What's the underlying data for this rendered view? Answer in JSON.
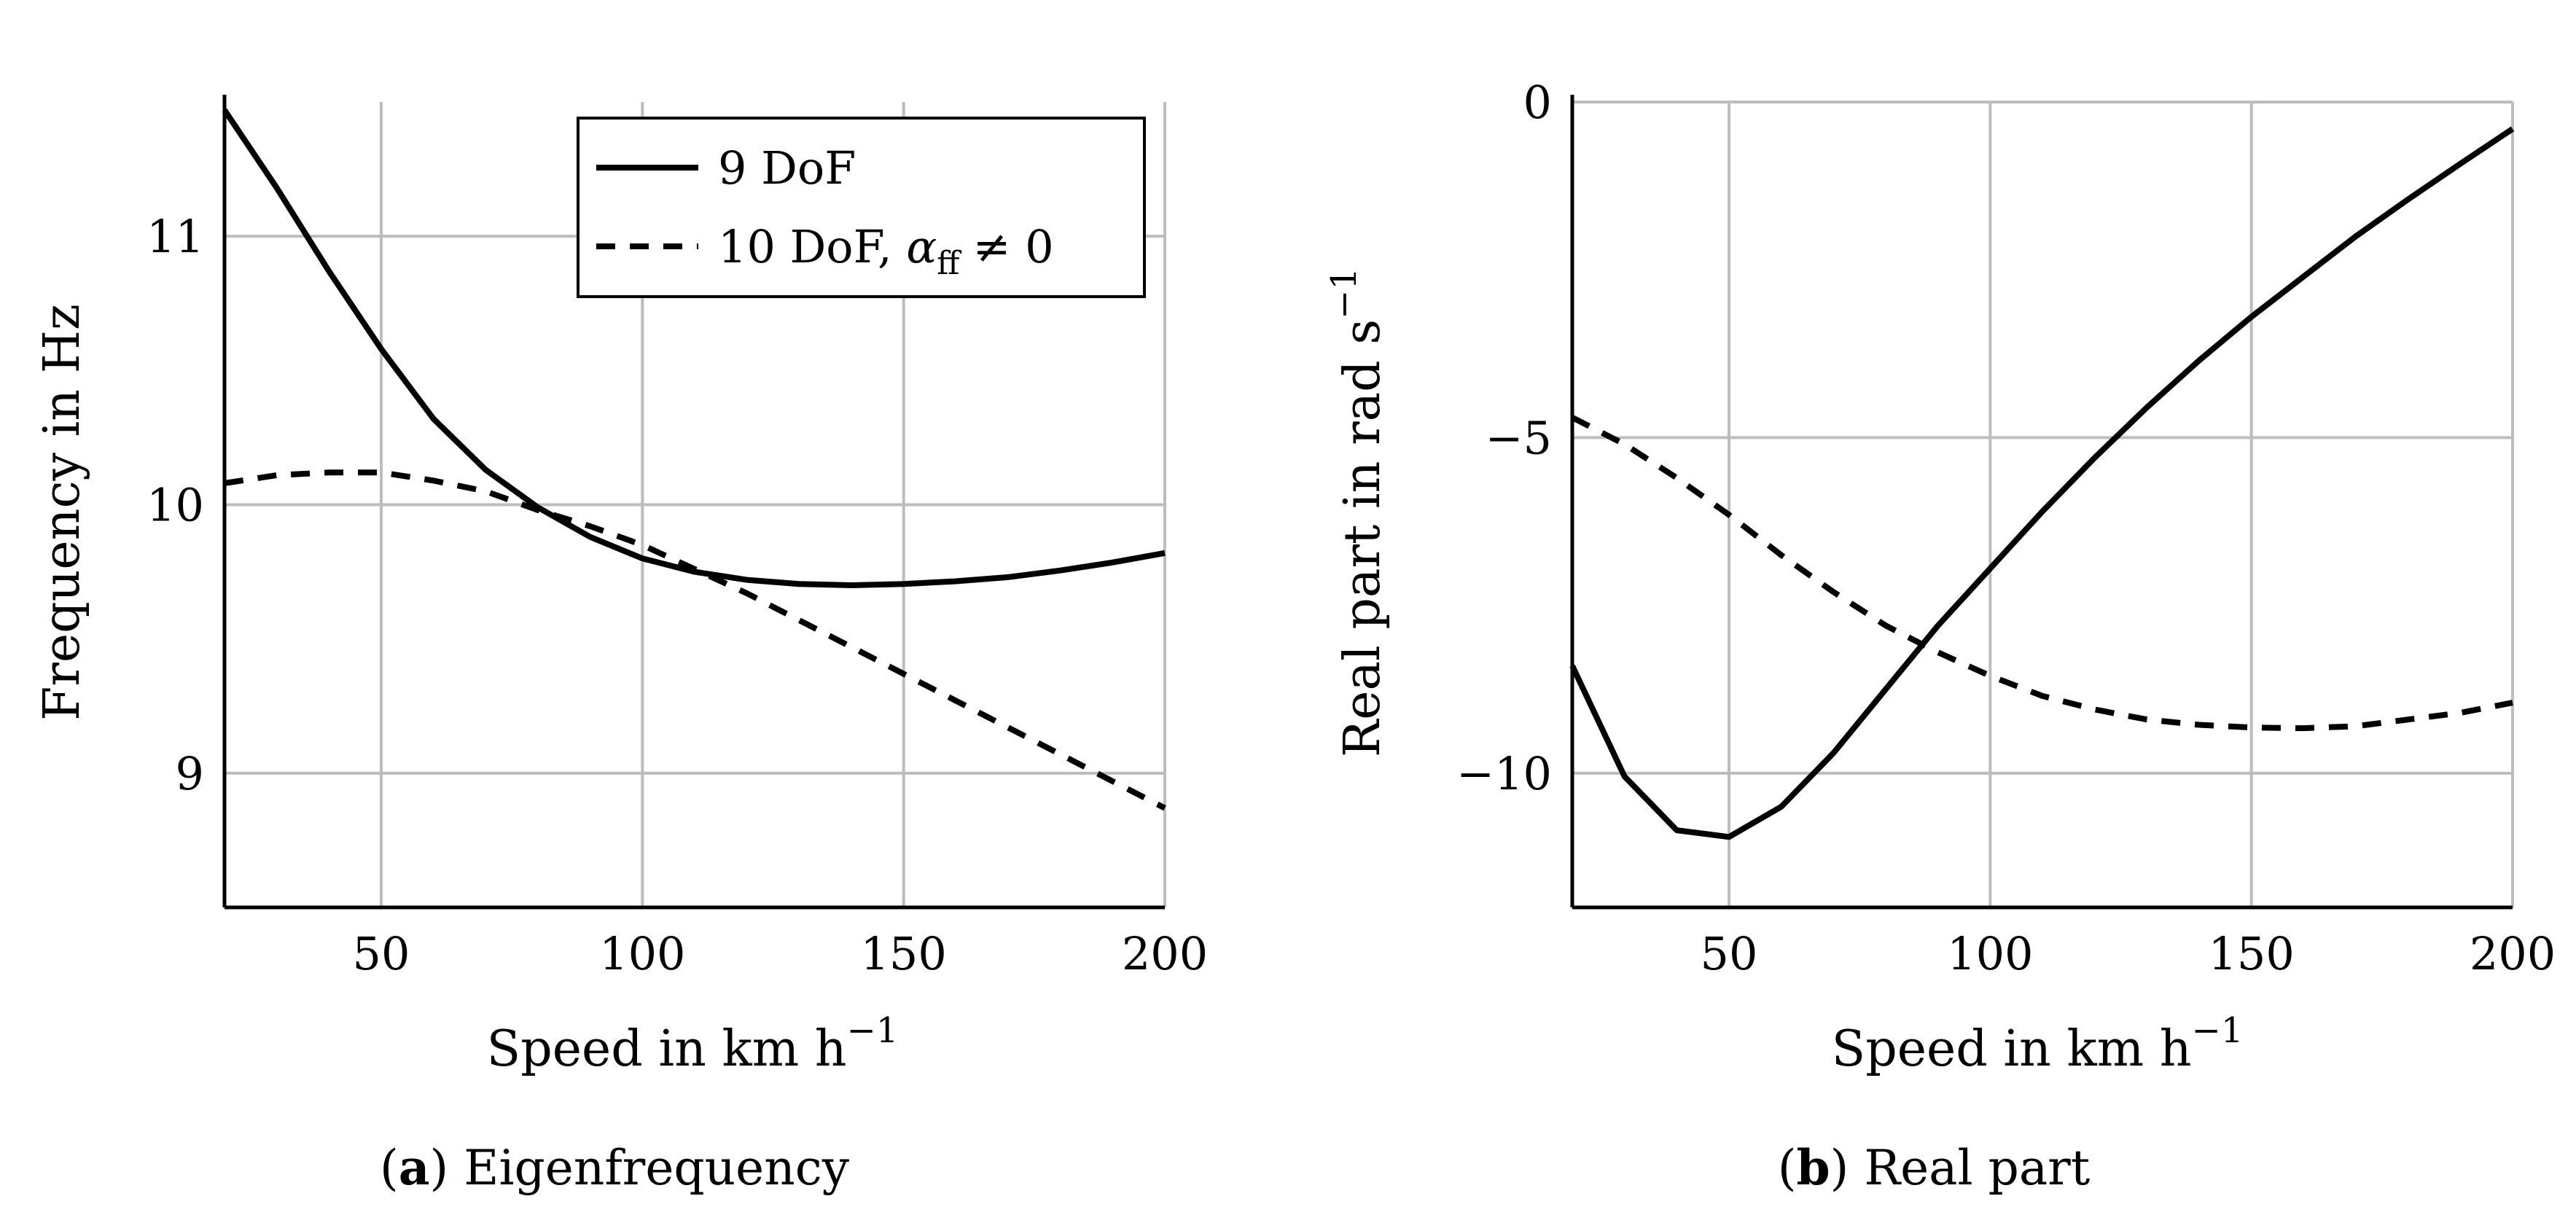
{
  "chart_data": [
    {
      "type": "line",
      "title": "",
      "caption": {
        "letter": "a",
        "text": "Eigenfrequency"
      },
      "xlabel": "Speed in km h",
      "xlabel_exponent": "−1",
      "ylabel": "Frequency in Hz",
      "xlim": [
        20,
        200
      ],
      "ylim": [
        8.5,
        11.5
      ],
      "xticks": [
        50,
        100,
        150,
        200
      ],
      "xtick_labels": [
        "50",
        "100",
        "150",
        "200"
      ],
      "yticks": [
        9,
        10,
        11
      ],
      "ytick_labels": [
        "9",
        "10",
        "11"
      ],
      "grid": true,
      "legend": {
        "placement": "top-right",
        "entries": [
          {
            "label": "9 DoF",
            "style": "solid"
          },
          {
            "label": "10 DoF, ",
            "math_symbol": "α",
            "math_subscript": "ff",
            "math_relation": "≠ 0",
            "style": "dashed"
          }
        ]
      },
      "series": [
        {
          "name": "9 DoF",
          "style": "solid",
          "x": [
            20,
            30,
            40,
            50,
            60,
            70,
            80,
            90,
            100,
            110,
            120,
            130,
            140,
            150,
            160,
            170,
            180,
            190,
            200
          ],
          "y": [
            11.47,
            11.18,
            10.87,
            10.58,
            10.32,
            10.13,
            9.99,
            9.88,
            9.8,
            9.75,
            9.72,
            9.705,
            9.7,
            9.705,
            9.715,
            9.73,
            9.755,
            9.785,
            9.82
          ]
        },
        {
          "name": "10 DoF, αff ≠ 0",
          "style": "dashed",
          "x": [
            20,
            30,
            40,
            50,
            60,
            70,
            80,
            90,
            100,
            110,
            120,
            130,
            140,
            150,
            160,
            170,
            180,
            190,
            200
          ],
          "y": [
            10.08,
            10.11,
            10.12,
            10.12,
            10.09,
            10.05,
            9.98,
            9.92,
            9.85,
            9.76,
            9.67,
            9.57,
            9.47,
            9.37,
            9.27,
            9.17,
            9.07,
            8.97,
            8.87
          ]
        }
      ]
    },
    {
      "type": "line",
      "title": "",
      "caption": {
        "letter": "b",
        "text": "Real part"
      },
      "xlabel": "Speed in km h",
      "xlabel_exponent": "−1",
      "ylabel": "Real part in rad s",
      "ylabel_exponent": "−1",
      "xlim": [
        20,
        200
      ],
      "ylim": [
        -12,
        0
      ],
      "xticks": [
        50,
        100,
        150,
        200
      ],
      "xtick_labels": [
        "50",
        "100",
        "150",
        "200"
      ],
      "yticks": [
        -10,
        -5,
        0
      ],
      "ytick_labels": [
        "−10",
        "−5",
        "0"
      ],
      "grid": true,
      "series": [
        {
          "name": "9 DoF",
          "style": "solid",
          "x": [
            20,
            30,
            40,
            50,
            60,
            70,
            80,
            90,
            100,
            110,
            120,
            130,
            140,
            150,
            160,
            170,
            180,
            190,
            200
          ],
          "y": [
            -8.4,
            -10.05,
            -10.85,
            -10.95,
            -10.5,
            -9.7,
            -8.75,
            -7.8,
            -6.95,
            -6.1,
            -5.3,
            -4.55,
            -3.85,
            -3.2,
            -2.6,
            -2.0,
            -1.45,
            -0.92,
            -0.4
          ]
        },
        {
          "name": "10 DoF, αff ≠ 0",
          "style": "dashed",
          "x": [
            20,
            30,
            40,
            50,
            60,
            70,
            80,
            90,
            100,
            110,
            120,
            130,
            140,
            150,
            160,
            170,
            180,
            190,
            200
          ],
          "y": [
            -4.7,
            -5.1,
            -5.6,
            -6.15,
            -6.75,
            -7.3,
            -7.8,
            -8.2,
            -8.55,
            -8.85,
            -9.05,
            -9.2,
            -9.28,
            -9.32,
            -9.33,
            -9.3,
            -9.2,
            -9.1,
            -8.95
          ]
        }
      ]
    }
  ]
}
